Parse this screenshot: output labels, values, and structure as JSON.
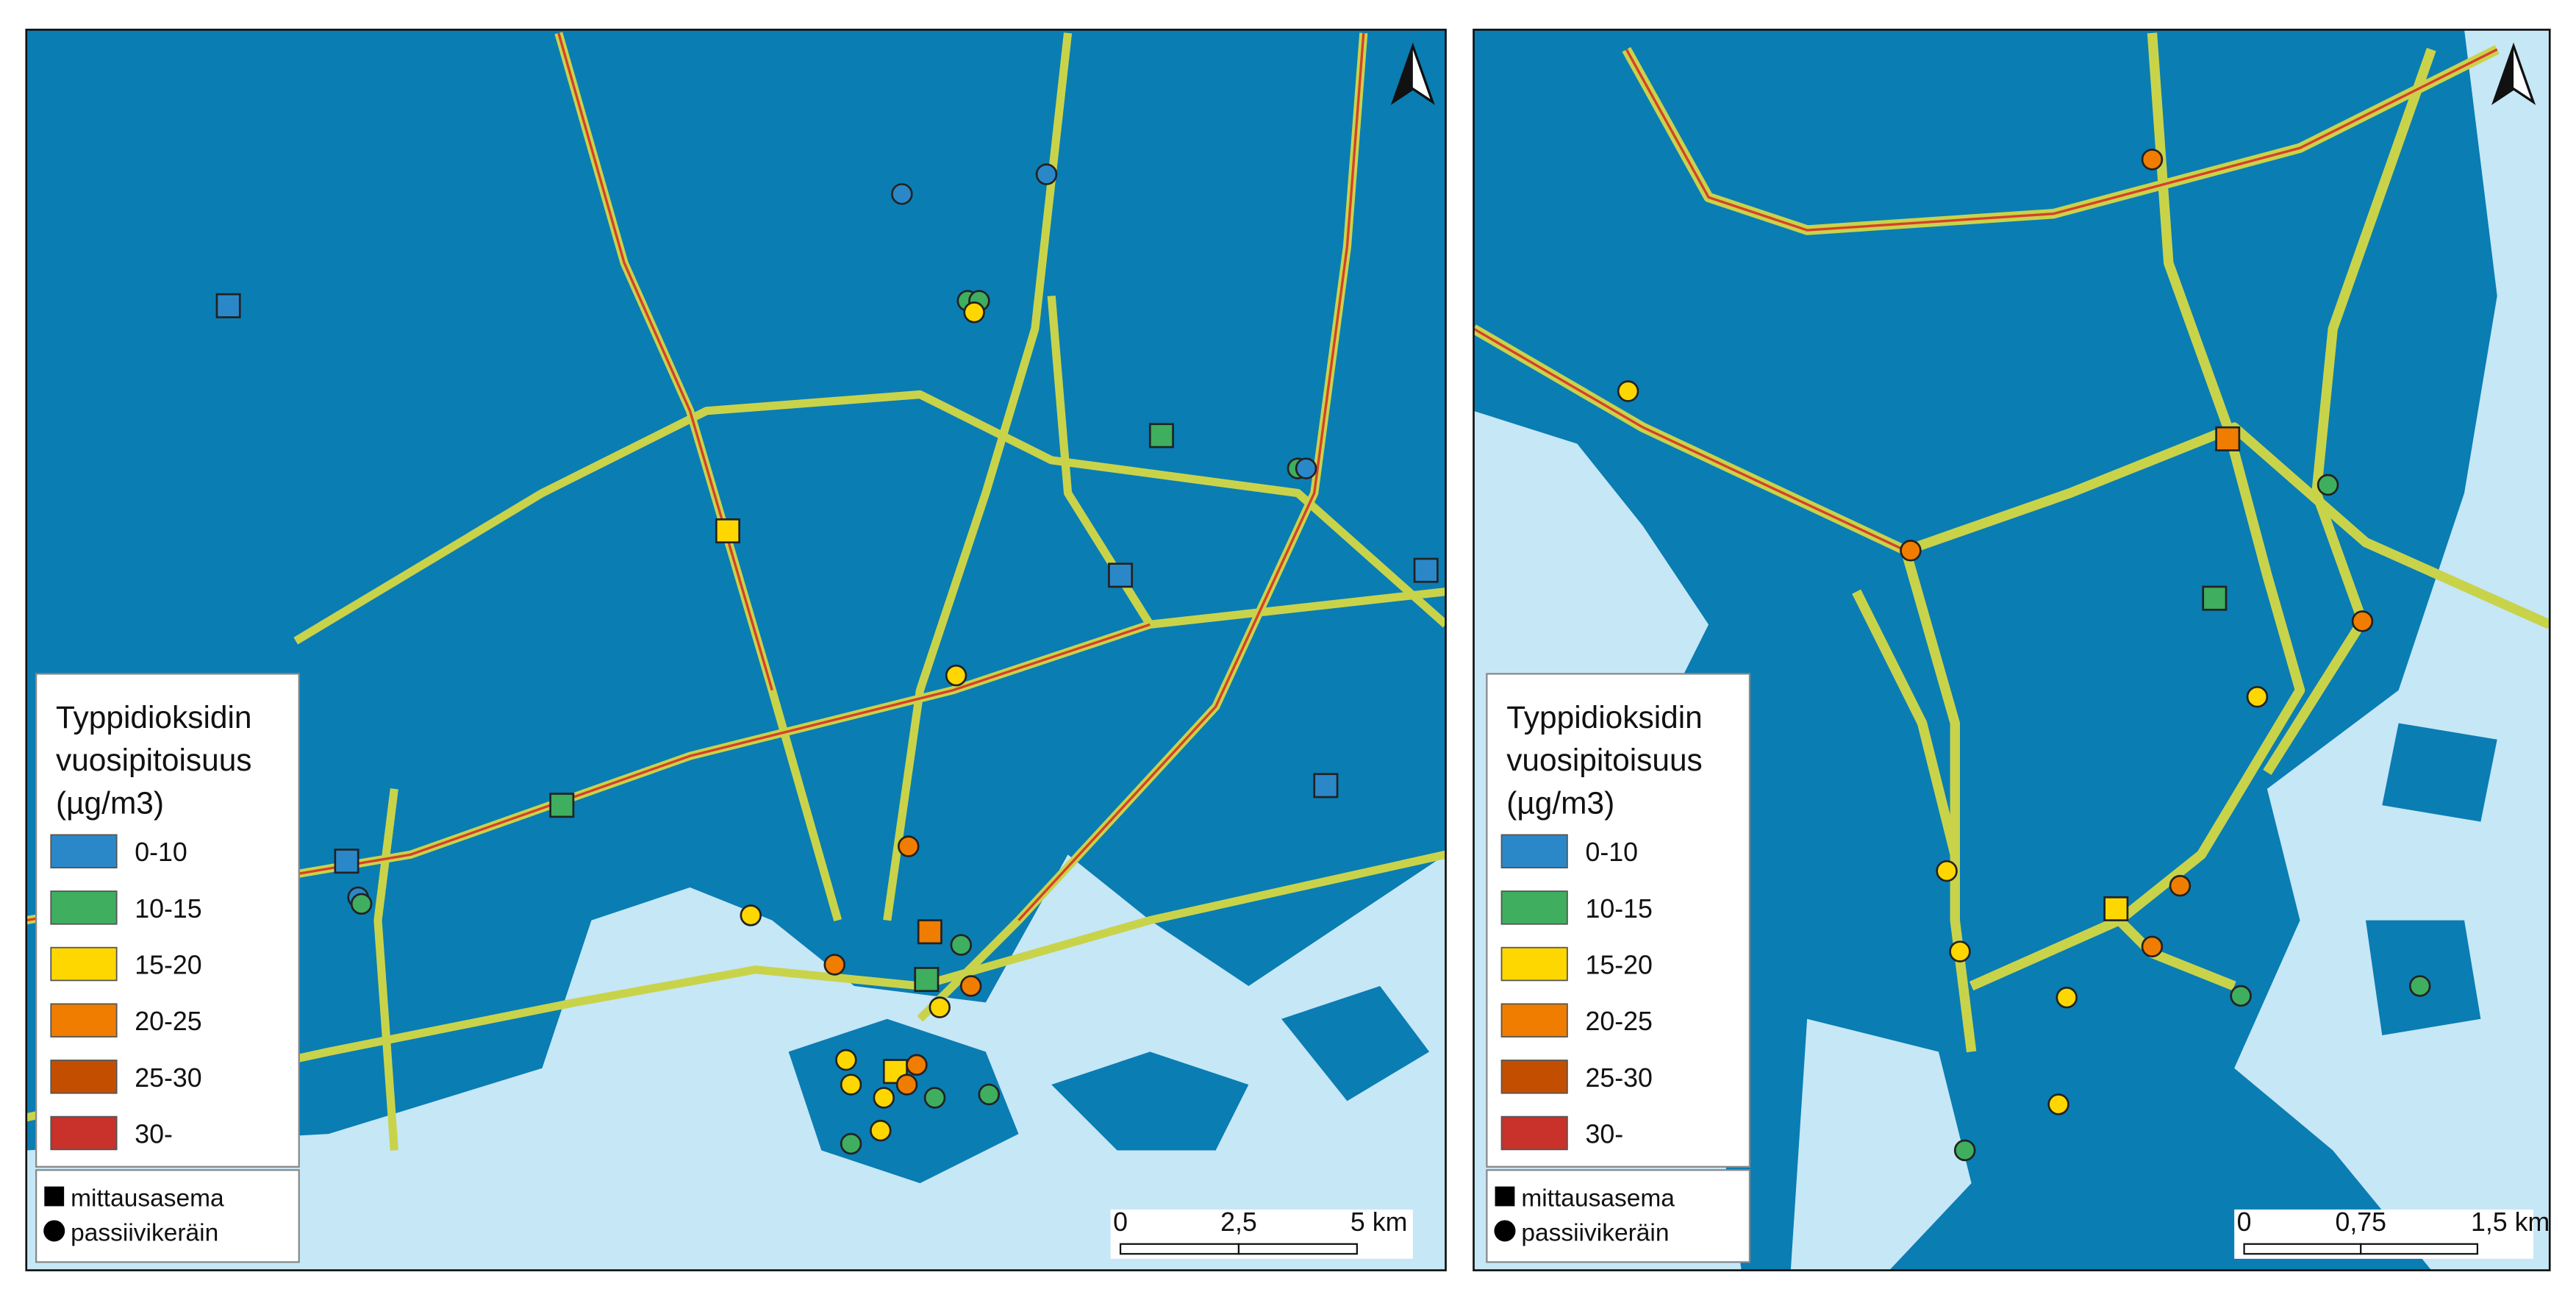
{
  "legend": {
    "title": [
      "Typpidioksidin",
      "vuosipitoisuus",
      "(µg/m3)"
    ],
    "classes": [
      {
        "label": "0-10",
        "color": "#2b88c8"
      },
      {
        "label": "10-15",
        "color": "#3fae5f"
      },
      {
        "label": "15-20",
        "color": "#ffd700"
      },
      {
        "label": "20-25",
        "color": "#f07d00"
      },
      {
        "label": "25-30",
        "color": "#c44e00"
      },
      {
        "label": "30-",
        "color": "#c9312b"
      }
    ],
    "symbols": [
      "mittausasema",
      "passiivikeräin"
    ]
  },
  "maps": [
    {
      "scale": [
        "0",
        "2,5",
        "5 km"
      ]
    },
    {
      "scale": [
        "0",
        "0,75",
        "1,5 km"
      ]
    }
  ]
}
